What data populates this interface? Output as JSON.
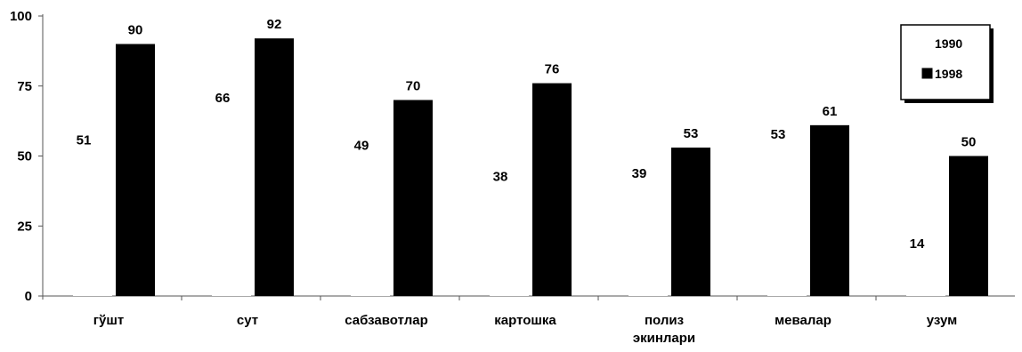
{
  "chart_data": {
    "type": "bar",
    "categories": [
      [
        "гўшт"
      ],
      [
        "сут"
      ],
      [
        "сабзавотлар"
      ],
      [
        "картошка"
      ],
      [
        "полиз",
        "экинлари"
      ],
      [
        "мевалар"
      ],
      [
        "узум"
      ]
    ],
    "series": [
      {
        "name": "1990",
        "values": [
          51,
          66,
          49,
          38,
          39,
          53,
          14
        ],
        "color": "#ffffff"
      },
      {
        "name": "1998",
        "values": [
          90,
          92,
          70,
          76,
          53,
          61,
          50
        ],
        "color": "#000000"
      }
    ],
    "y_ticks": [
      "0",
      "25",
      "50",
      "75",
      "100"
    ],
    "ylim": [
      0,
      100
    ],
    "legend_position": "top-right",
    "grid": false
  }
}
